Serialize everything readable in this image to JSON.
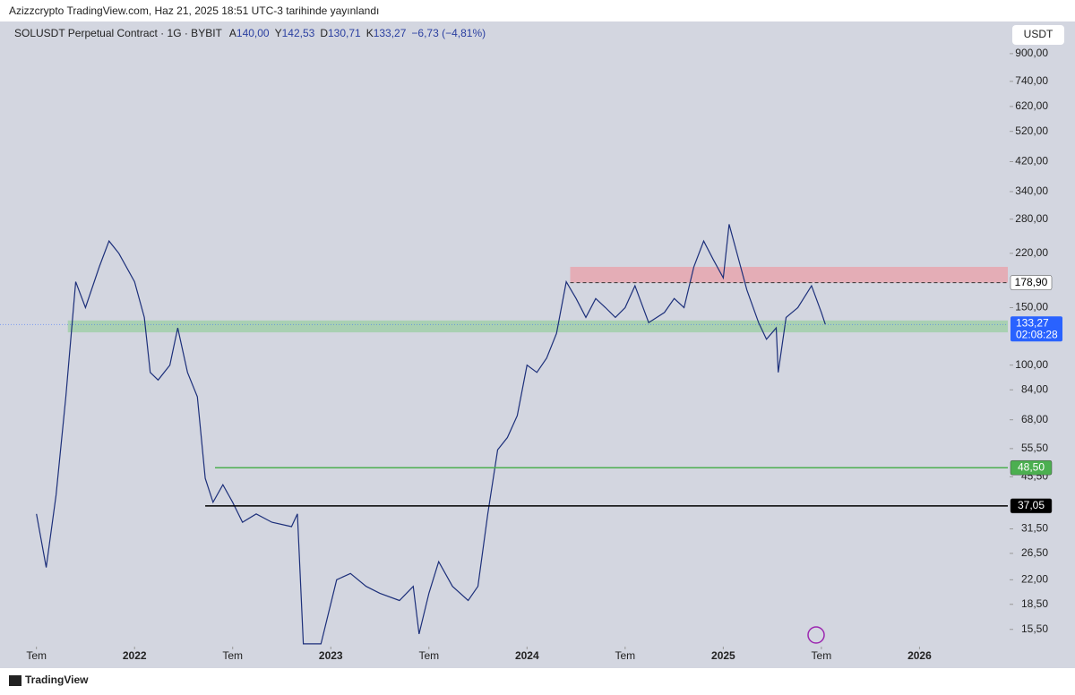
{
  "chart_data": {
    "type": "line",
    "title": "Azizzcrypto TradingView.com, Haz 21, 2025 18:51 UTC-3 tarihinde yayınlandı",
    "symbol": "SOLUSDT Perpetual Contract · 1G · BYBIT",
    "ohlc": [
      {
        "key": "A",
        "text": "140,00"
      },
      {
        "key": "Y",
        "text": "142,53"
      },
      {
        "key": "D",
        "text": "130,71"
      },
      {
        "key": "K",
        "text": "133,27"
      }
    ],
    "change": "−6,73 (−4,81%)",
    "currency": "USDT",
    "footer": "TradingView",
    "log_scale": true,
    "color": "#1c2f7a",
    "xlim": [
      2021.36,
      2026.45
    ],
    "xticks": [
      {
        "value": 2021.5,
        "label": "Tem"
      },
      {
        "value": 2022,
        "label": "2022"
      },
      {
        "value": 2022.5,
        "label": "Tem"
      },
      {
        "value": 2023,
        "label": "2023"
      },
      {
        "value": 2023.5,
        "label": "Tem"
      },
      {
        "value": 2024,
        "label": "2024"
      },
      {
        "value": 2024.5,
        "label": "Tem"
      },
      {
        "value": 2025,
        "label": "2025"
      },
      {
        "value": 2025.5,
        "label": "Tem"
      },
      {
        "value": 2026,
        "label": "2026"
      }
    ],
    "ylim": [
      13.9,
      1087
    ],
    "yticks": [
      {
        "value": 900,
        "label": "900,00"
      },
      {
        "value": 740,
        "label": "740,00"
      },
      {
        "value": 620,
        "label": "620,00"
      },
      {
        "value": 520,
        "label": "520,00"
      },
      {
        "value": 420,
        "label": "420,00"
      },
      {
        "value": 340,
        "label": "340,00"
      },
      {
        "value": 280,
        "label": "280,00"
      },
      {
        "value": 220,
        "label": "220,00"
      },
      {
        "value": 150,
        "label": "150,00"
      },
      {
        "value": 100,
        "label": "100,00"
      },
      {
        "value": 84,
        "label": "84,00"
      },
      {
        "value": 68,
        "label": "68,00"
      },
      {
        "value": 55.5,
        "label": "55,50"
      },
      {
        "value": 45.5,
        "label": "45,50"
      },
      {
        "value": 31.5,
        "label": "31,50"
      },
      {
        "value": 26.5,
        "label": "26,50"
      },
      {
        "value": 22,
        "label": "22,00"
      },
      {
        "value": 18.5,
        "label": "18,50"
      },
      {
        "value": 15.5,
        "label": "15,50"
      }
    ],
    "x": [
      2021.5,
      2021.55,
      2021.6,
      2021.65,
      2021.7,
      2021.75,
      2021.82,
      2021.87,
      2021.92,
      2022.0,
      2022.05,
      2022.08,
      2022.12,
      2022.18,
      2022.22,
      2022.27,
      2022.32,
      2022.36,
      2022.4,
      2022.45,
      2022.5,
      2022.55,
      2022.62,
      2022.7,
      2022.8,
      2022.83,
      2022.86,
      2022.95,
      2023.03,
      2023.1,
      2023.18,
      2023.25,
      2023.35,
      2023.42,
      2023.45,
      2023.5,
      2023.55,
      2023.62,
      2023.7,
      2023.75,
      2023.8,
      2023.85,
      2023.9,
      2023.95,
      2024.0,
      2024.05,
      2024.1,
      2024.15,
      2024.2,
      2024.25,
      2024.3,
      2024.35,
      2024.4,
      2024.45,
      2024.5,
      2024.55,
      2024.62,
      2024.7,
      2024.75,
      2024.8,
      2024.85,
      2024.9,
      2024.95,
      2025.0,
      2025.03,
      2025.07,
      2025.12,
      2025.18,
      2025.22,
      2025.27,
      2025.28,
      2025.32,
      2025.38,
      2025.45,
      2025.5,
      2025.52
    ],
    "series": [
      {
        "name": "SOLUSDT",
        "color": "#1c2f7a",
        "values": [
          35,
          24,
          40,
          80,
          180,
          150,
          200,
          240,
          220,
          180,
          140,
          95,
          90,
          100,
          130,
          95,
          80,
          45,
          38,
          43,
          38,
          33,
          35,
          33,
          32,
          35,
          14,
          14,
          22,
          23,
          21,
          20,
          19,
          21,
          15,
          20,
          25,
          21,
          19,
          21,
          35,
          55,
          60,
          70,
          100,
          95,
          105,
          125,
          180,
          160,
          140,
          160,
          150,
          140,
          150,
          175,
          135,
          145,
          160,
          150,
          200,
          240,
          210,
          185,
          270,
          220,
          170,
          135,
          120,
          130,
          95,
          140,
          150,
          175,
          145,
          133.27
        ]
      }
    ],
    "zones": [
      {
        "from": 178.9,
        "to": 200,
        "x_start": 2024.22,
        "color": "#e8a3ab"
      },
      {
        "from": 126,
        "to": 137,
        "x_start": 2021.66,
        "color": "#9fcea6"
      }
    ],
    "levels": [
      {
        "value": 178.9,
        "label": "178,90",
        "x_start": 2024.22,
        "color": "#333333",
        "dashed": true,
        "box": "#ffffff",
        "text_color": "#000000"
      },
      {
        "value": 48.5,
        "label": "48,50",
        "x_start": 2022.41,
        "color": "#4caf50",
        "dashed": false,
        "box": "#4caf50",
        "text_color": "#ffffff"
      },
      {
        "value": 37.05,
        "label": "37,05",
        "x_start": 2022.36,
        "color": "#000000",
        "dashed": false,
        "box": "#000000",
        "text_color": "#ffffff"
      }
    ],
    "last_price": {
      "value": 133.27,
      "label": "133,27",
      "countdown": "02:08:28",
      "color": "#2962ff"
    }
  }
}
